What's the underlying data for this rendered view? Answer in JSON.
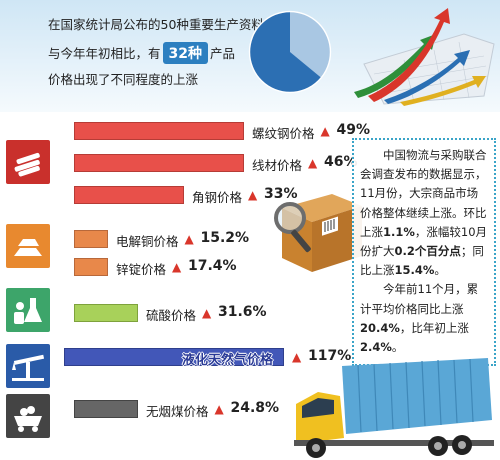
{
  "header": {
    "line1": "在国家统计局公布的50种重要生产资料价格中，",
    "line2_pre": "与今年年初相比，有",
    "count": "32种",
    "line2_post": "产品",
    "line3": "价格出现了不同程度的上涨"
  },
  "pie": {
    "share": 0.64,
    "colors": [
      "#2c6fb3",
      "#a9c7e3"
    ]
  },
  "chart_data": {
    "type": "bar",
    "categories": [
      "螺纹钢价格",
      "线材价格",
      "角钢价格",
      "电解铜价格",
      "锌锭价格",
      "硫酸价格",
      "液化天然气价格",
      "无烟煤价格"
    ],
    "values": [
      49,
      46,
      33,
      15.2,
      17.4,
      31.6,
      117,
      24.8
    ],
    "value_labels": [
      "49%",
      "46%",
      "33%",
      "15.2%",
      "17.4%",
      "31.6%",
      "117%",
      "24.8%"
    ],
    "marker": "▲",
    "colors": [
      "#e8504a",
      "#e8504a",
      "#e8504a",
      "#e8884a",
      "#e8884a",
      "#a8d15a",
      "#4257b8",
      "#666666"
    ]
  },
  "icons": [
    {
      "name": "steel-rods-icon",
      "color": "#c9302c"
    },
    {
      "name": "metal-ingots-icon",
      "color": "#e8892f"
    },
    {
      "name": "chemical-flask-icon",
      "color": "#3da56a"
    },
    {
      "name": "oil-pump-icon",
      "color": "#2a5ba8"
    },
    {
      "name": "coal-cart-icon",
      "color": "#444444"
    }
  ],
  "note": {
    "p1_a": "中国物流与采购联合会调查发布的数据显示，11月份，大宗商品市场价格整体继续上涨。环比上涨",
    "p1_b": "1.1%",
    "p1_c": "，涨幅较10月份扩大",
    "p1_d": "0.2个百分点",
    "p1_e": "；同比上涨",
    "p1_f": "15.4%",
    "p1_g": "。",
    "p2_a": "今年前11个月，累计平均价格同比上涨",
    "p2_b": "20.4%",
    "p2_c": "，比年初上涨",
    "p2_d": "2.4%",
    "p2_e": "。"
  }
}
